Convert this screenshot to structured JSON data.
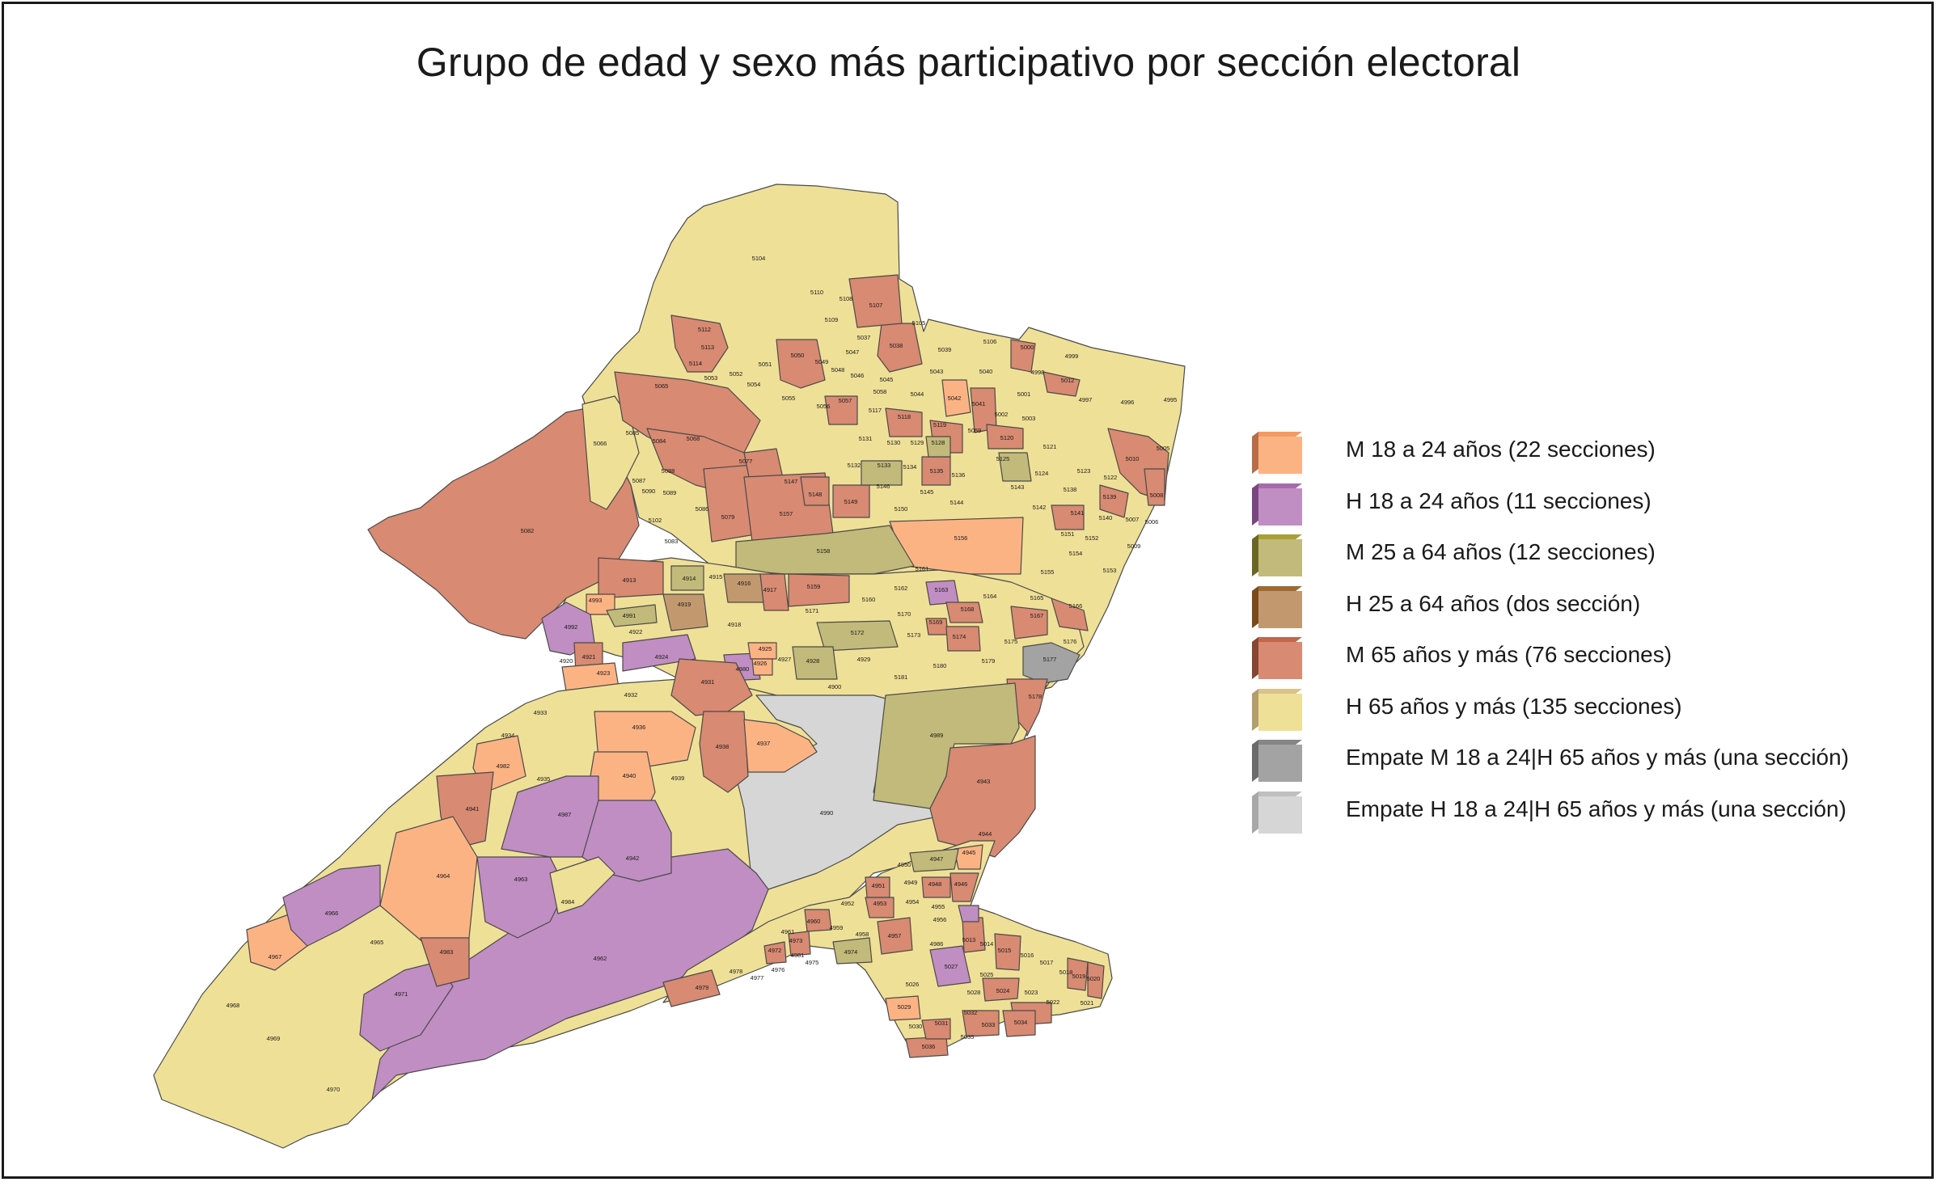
{
  "title": "Grupo de edad y sexo más participativo por sección electoral",
  "colors": {
    "m18": "#fcb384",
    "h18": "#c08ec2",
    "m25": "#c2ba7a",
    "h25": "#c2996f",
    "m65": "#d88a72",
    "h65": "#efe097",
    "empate_m18_h65": "#a3a3a3",
    "empate_h18_h65": "#d6d6d6",
    "border": "#4a4a4a"
  },
  "legend": [
    {
      "key": "m18",
      "label": "M 18 a 24 años (22 secciones)",
      "front": "#fcb384",
      "side": "#b86d47",
      "top": "#f29a62"
    },
    {
      "key": "h18",
      "label": "H 18 a 24 años (11 secciones)",
      "front": "#c08ec2",
      "side": "#7a4680",
      "top": "#a66aab"
    },
    {
      "key": "m25",
      "label": "M 25 a 64 años (12 secciones)",
      "front": "#c2ba7a",
      "side": "#6b6622",
      "top": "#a8a034"
    },
    {
      "key": "h25",
      "label": "H 25 a 64 años (dos sección)",
      "front": "#c2996f",
      "side": "#7a4a1c",
      "top": "#9e6a32"
    },
    {
      "key": "m65",
      "label": "M 65 años y más (76 secciones)",
      "front": "#d88a72",
      "side": "#874632",
      "top": "#c2674c"
    },
    {
      "key": "h65",
      "label": "H 65 años y más (135 secciones)",
      "front": "#efe097",
      "side": "#b39e6c",
      "top": "#d8c38a"
    },
    {
      "key": "empate1",
      "label": "Empate M 18 a 24|H 65 años y más (una sección)",
      "front": "#a3a3a3",
      "side": "#6b6b6b",
      "top": "#858585"
    },
    {
      "key": "empate2",
      "label": "Empate H 18 a 24|H 65 años y más (una sección)",
      "front": "#d6d6d6",
      "side": "#a8a8a8",
      "top": "#bfbfbf"
    }
  ],
  "section_labels": [
    {
      "id": "5104",
      "cat": "h65"
    },
    {
      "id": "5110",
      "cat": "h65"
    },
    {
      "id": "5108",
      "cat": "h65"
    },
    {
      "id": "5107",
      "cat": "m65"
    },
    {
      "id": "5109",
      "cat": "h65"
    },
    {
      "id": "5105",
      "cat": "h65"
    },
    {
      "id": "5106",
      "cat": "h65"
    },
    {
      "id": "5037",
      "cat": "h65"
    },
    {
      "id": "5038",
      "cat": "m65"
    },
    {
      "id": "5039",
      "cat": "h65"
    },
    {
      "id": "5000",
      "cat": "m65"
    },
    {
      "id": "4999",
      "cat": "h65"
    },
    {
      "id": "4998",
      "cat": "h65"
    },
    {
      "id": "5012",
      "cat": "m65"
    },
    {
      "id": "4997",
      "cat": "h65"
    },
    {
      "id": "4996",
      "cat": "h65"
    },
    {
      "id": "4995",
      "cat": "h65"
    },
    {
      "id": "5112",
      "cat": "m65"
    },
    {
      "id": "5113",
      "cat": "m65"
    },
    {
      "id": "5114",
      "cat": "m65"
    },
    {
      "id": "5050",
      "cat": "m65"
    },
    {
      "id": "5049",
      "cat": "h65"
    },
    {
      "id": "5047",
      "cat": "m65"
    },
    {
      "id": "5048",
      "cat": "h65"
    },
    {
      "id": "5046",
      "cat": "h65"
    },
    {
      "id": "5045",
      "cat": "h65"
    },
    {
      "id": "5043",
      "cat": "h65"
    },
    {
      "id": "5040",
      "cat": "h65"
    },
    {
      "id": "5041",
      "cat": "m65"
    },
    {
      "id": "5001",
      "cat": "h65"
    },
    {
      "id": "5002",
      "cat": "h65"
    },
    {
      "id": "5003",
      "cat": "h65"
    },
    {
      "id": "5065",
      "cat": "m65"
    },
    {
      "id": "5052",
      "cat": "m65"
    },
    {
      "id": "5053",
      "cat": "m65"
    },
    {
      "id": "5054",
      "cat": "m65"
    },
    {
      "id": "5051",
      "cat": "h65"
    },
    {
      "id": "5055",
      "cat": "h65"
    },
    {
      "id": "5056",
      "cat": "h65"
    },
    {
      "id": "5057",
      "cat": "m65"
    },
    {
      "id": "5058",
      "cat": "h65"
    },
    {
      "id": "5044",
      "cat": "h65"
    },
    {
      "id": "5042",
      "cat": "m18"
    },
    {
      "id": "5066",
      "cat": "h65"
    },
    {
      "id": "5085",
      "cat": "m65"
    },
    {
      "id": "5084",
      "cat": "m65"
    },
    {
      "id": "5068",
      "cat": "m65"
    },
    {
      "id": "5059",
      "cat": "m65"
    },
    {
      "id": "5117",
      "cat": "h65"
    },
    {
      "id": "5118",
      "cat": "m65"
    },
    {
      "id": "5119",
      "cat": "h65"
    },
    {
      "id": "5120",
      "cat": "m65"
    },
    {
      "id": "5121",
      "cat": "h65"
    },
    {
      "id": "5010",
      "cat": "m65"
    },
    {
      "id": "5005",
      "cat": "h65"
    },
    {
      "id": "5082",
      "cat": "m65"
    },
    {
      "id": "5088",
      "cat": "h65"
    },
    {
      "id": "5087",
      "cat": "h65"
    },
    {
      "id": "5089",
      "cat": "h65"
    },
    {
      "id": "5090",
      "cat": "h65"
    },
    {
      "id": "5079",
      "cat": "m65"
    },
    {
      "id": "5077",
      "cat": "m65"
    },
    {
      "id": "5131",
      "cat": "h65"
    },
    {
      "id": "5130",
      "cat": "h65"
    },
    {
      "id": "5129",
      "cat": "h65"
    },
    {
      "id": "5128",
      "cat": "m25"
    },
    {
      "id": "5125",
      "cat": "m25"
    },
    {
      "id": "5124",
      "cat": "h65"
    },
    {
      "id": "5123",
      "cat": "h65"
    },
    {
      "id": "5122",
      "cat": "h65"
    },
    {
      "id": "5008",
      "cat": "m65"
    },
    {
      "id": "5102",
      "cat": "h65"
    },
    {
      "id": "5086",
      "cat": "h65"
    },
    {
      "id": "5157",
      "cat": "m65"
    },
    {
      "id": "5147",
      "cat": "h65"
    },
    {
      "id": "5148",
      "cat": "m65"
    },
    {
      "id": "5149",
      "cat": "m65"
    },
    {
      "id": "5132",
      "cat": "h65"
    },
    {
      "id": "5133",
      "cat": "m25"
    },
    {
      "id": "5134",
      "cat": "h65"
    },
    {
      "id": "5135",
      "cat": "m65"
    },
    {
      "id": "5136",
      "cat": "h65"
    },
    {
      "id": "5146",
      "cat": "h65"
    },
    {
      "id": "5145",
      "cat": "h65"
    },
    {
      "id": "5144",
      "cat": "h65"
    },
    {
      "id": "5143",
      "cat": "h65"
    },
    {
      "id": "5142",
      "cat": "h65"
    },
    {
      "id": "5138",
      "cat": "h65"
    },
    {
      "id": "5139",
      "cat": "m65"
    },
    {
      "id": "5150",
      "cat": "h65"
    },
    {
      "id": "5141",
      "cat": "m65"
    },
    {
      "id": "5140",
      "cat": "h65"
    },
    {
      "id": "5007",
      "cat": "h65"
    },
    {
      "id": "5006",
      "cat": "h65"
    },
    {
      "id": "5083",
      "cat": "h65"
    },
    {
      "id": "5156",
      "cat": "m18"
    },
    {
      "id": "5158",
      "cat": "m25"
    },
    {
      "id": "5151",
      "cat": "h65"
    },
    {
      "id": "5152",
      "cat": "h65"
    },
    {
      "id": "5154",
      "cat": "h65"
    },
    {
      "id": "5009",
      "cat": "h65"
    },
    {
      "id": "5153",
      "cat": "h65"
    },
    {
      "id": "5155",
      "cat": "h65"
    },
    {
      "id": "5161",
      "cat": "h65"
    },
    {
      "id": "4913",
      "cat": "m65"
    },
    {
      "id": "4914",
      "cat": "m25"
    },
    {
      "id": "4915",
      "cat": "h65"
    },
    {
      "id": "4916",
      "cat": "h25"
    },
    {
      "id": "4917",
      "cat": "m65"
    },
    {
      "id": "5159",
      "cat": "m65"
    },
    {
      "id": "5162",
      "cat": "h65"
    },
    {
      "id": "5163",
      "cat": "h18"
    },
    {
      "id": "5164",
      "cat": "h65"
    },
    {
      "id": "5165",
      "cat": "h65"
    },
    {
      "id": "5166",
      "cat": "m65"
    },
    {
      "id": "4993",
      "cat": "m18"
    },
    {
      "id": "4919",
      "cat": "h25"
    },
    {
      "id": "4991",
      "cat": "m25"
    },
    {
      "id": "5171",
      "cat": "h65"
    },
    {
      "id": "5160",
      "cat": "h65"
    },
    {
      "id": "5168",
      "cat": "m65"
    },
    {
      "id": "5167",
      "cat": "m65"
    },
    {
      "id": "4992",
      "cat": "h18"
    },
    {
      "id": "4922",
      "cat": "h65"
    },
    {
      "id": "4918",
      "cat": "h65"
    },
    {
      "id": "5170",
      "cat": "h65"
    },
    {
      "id": "5169",
      "cat": "m65"
    },
    {
      "id": "5172",
      "cat": "m25"
    },
    {
      "id": "5173",
      "cat": "h65"
    },
    {
      "id": "5174",
      "cat": "m65"
    },
    {
      "id": "5175",
      "cat": "h65"
    },
    {
      "id": "5176",
      "cat": "h65"
    },
    {
      "id": "5177",
      "cat": "empate1"
    },
    {
      "id": "4921",
      "cat": "m65"
    },
    {
      "id": "4924",
      "cat": "h18"
    },
    {
      "id": "4925",
      "cat": "m18"
    },
    {
      "id": "4926",
      "cat": "m18"
    },
    {
      "id": "4927",
      "cat": "h65"
    },
    {
      "id": "4928",
      "cat": "m25"
    },
    {
      "id": "4929",
      "cat": "h65"
    },
    {
      "id": "4980",
      "cat": "h18"
    },
    {
      "id": "5179",
      "cat": "h65"
    },
    {
      "id": "5180",
      "cat": "h65"
    },
    {
      "id": "5181",
      "cat": "h65"
    },
    {
      "id": "4920",
      "cat": "h65"
    },
    {
      "id": "4923",
      "cat": "m18"
    },
    {
      "id": "4931",
      "cat": "m65"
    },
    {
      "id": "4900",
      "cat": "h65"
    },
    {
      "id": "5178",
      "cat": "m65"
    },
    {
      "id": "4932",
      "cat": "h65"
    },
    {
      "id": "4933",
      "cat": "h65"
    },
    {
      "id": "4934",
      "cat": "h65"
    },
    {
      "id": "4936",
      "cat": "m18"
    },
    {
      "id": "4938",
      "cat": "m65"
    },
    {
      "id": "4937",
      "cat": "m18"
    },
    {
      "id": "4989",
      "cat": "m25"
    },
    {
      "id": "4982",
      "cat": "m18"
    },
    {
      "id": "4935",
      "cat": "h65"
    },
    {
      "id": "4940",
      "cat": "m18"
    },
    {
      "id": "4939",
      "cat": "h65"
    },
    {
      "id": "4943",
      "cat": "m65"
    },
    {
      "id": "4941",
      "cat": "m65"
    },
    {
      "id": "4987",
      "cat": "h18"
    },
    {
      "id": "4990",
      "cat": "empate2"
    },
    {
      "id": "4942",
      "cat": "h18"
    },
    {
      "id": "4944",
      "cat": "h65"
    },
    {
      "id": "4964",
      "cat": "m18"
    },
    {
      "id": "4963",
      "cat": "h18"
    },
    {
      "id": "4947",
      "cat": "m25"
    },
    {
      "id": "4945",
      "cat": "m18"
    },
    {
      "id": "4950",
      "cat": "h65"
    },
    {
      "id": "4948",
      "cat": "m65"
    },
    {
      "id": "4946",
      "cat": "m65"
    },
    {
      "id": "4951",
      "cat": "m65"
    },
    {
      "id": "4949",
      "cat": "h65"
    },
    {
      "id": "4984",
      "cat": "h65"
    },
    {
      "id": "4966",
      "cat": "h18"
    },
    {
      "id": "4952",
      "cat": "h65"
    },
    {
      "id": "4953",
      "cat": "m65"
    },
    {
      "id": "4954",
      "cat": "h65"
    },
    {
      "id": "4955",
      "cat": "h65"
    },
    {
      "id": "4956",
      "cat": "h65"
    },
    {
      "id": "4960",
      "cat": "m65"
    },
    {
      "id": "4959",
      "cat": "h65"
    },
    {
      "id": "4958",
      "cat": "h65"
    },
    {
      "id": "4957",
      "cat": "m65"
    },
    {
      "id": "4967",
      "cat": "m18"
    },
    {
      "id": "4965",
      "cat": "h65"
    },
    {
      "id": "4983",
      "cat": "m65"
    },
    {
      "id": "4962",
      "cat": "h18"
    },
    {
      "id": "4961",
      "cat": "h65"
    },
    {
      "id": "4973",
      "cat": "m65"
    },
    {
      "id": "4972",
      "cat": "m65"
    },
    {
      "id": "4981",
      "cat": "h65"
    },
    {
      "id": "4974",
      "cat": "m25"
    },
    {
      "id": "4975",
      "cat": "h65"
    },
    {
      "id": "4976",
      "cat": "h65"
    },
    {
      "id": "4978",
      "cat": "h65"
    },
    {
      "id": "4977",
      "cat": "h65"
    },
    {
      "id": "4979",
      "cat": "m65"
    },
    {
      "id": "4986",
      "cat": "h65"
    },
    {
      "id": "5013",
      "cat": "m65"
    },
    {
      "id": "5014",
      "cat": "h65"
    },
    {
      "id": "5015",
      "cat": "m65"
    },
    {
      "id": "5016",
      "cat": "h65"
    },
    {
      "id": "5017",
      "cat": "h65"
    },
    {
      "id": "5018",
      "cat": "h65"
    },
    {
      "id": "5019",
      "cat": "m65"
    },
    {
      "id": "5020",
      "cat": "m65"
    },
    {
      "id": "5027",
      "cat": "h18"
    },
    {
      "id": "5026",
      "cat": "h65"
    },
    {
      "id": "5025",
      "cat": "h65"
    },
    {
      "id": "5024",
      "cat": "m65"
    },
    {
      "id": "5022",
      "cat": "h65"
    },
    {
      "id": "5021",
      "cat": "h65"
    },
    {
      "id": "4968",
      "cat": "h65"
    },
    {
      "id": "4971",
      "cat": "h18"
    },
    {
      "id": "4969",
      "cat": "h65"
    },
    {
      "id": "5028",
      "cat": "h65"
    },
    {
      "id": "5029",
      "cat": "m18"
    },
    {
      "id": "5032",
      "cat": "m65"
    },
    {
      "id": "5023",
      "cat": "m65"
    },
    {
      "id": "5034",
      "cat": "m65"
    },
    {
      "id": "5030",
      "cat": "h65"
    },
    {
      "id": "5031",
      "cat": "h65"
    },
    {
      "id": "5033",
      "cat": "m65"
    },
    {
      "id": "5035",
      "cat": "h65"
    },
    {
      "id": "5036",
      "cat": "m65"
    },
    {
      "id": "4970",
      "cat": "h65"
    }
  ]
}
